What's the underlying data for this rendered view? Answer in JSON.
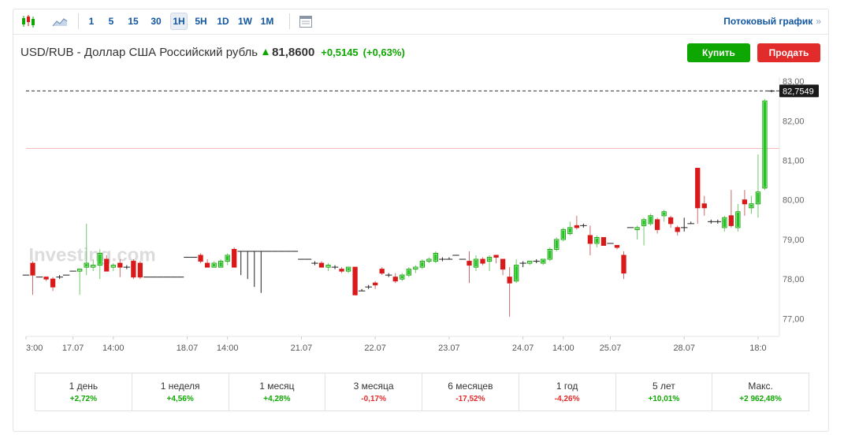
{
  "toolbar": {
    "intervals": [
      "1",
      "5",
      "15",
      "30",
      "1H",
      "5H",
      "1D",
      "1W",
      "1M"
    ],
    "active_interval": "1H",
    "stream_link": "Потоковый график",
    "stream_arrows": "»"
  },
  "header": {
    "pair": "USD/RUB - Доллар США Российский рубль",
    "price": "81,8600",
    "change_abs": "+0,5145",
    "change_pct": "(+0,63%)"
  },
  "actions": {
    "buy": "Купить",
    "sell": "Продать"
  },
  "colors": {
    "up": "#0ea600",
    "down": "#d91a1a",
    "accent": "#1256a0"
  },
  "periods": [
    {
      "label": "1 день",
      "value": "+2,72%",
      "dir": "pos"
    },
    {
      "label": "1 неделя",
      "value": "+4,56%",
      "dir": "pos"
    },
    {
      "label": "1 месяц",
      "value": "+4,28%",
      "dir": "pos"
    },
    {
      "label": "3 месяца",
      "value": "-0,17%",
      "dir": "neg"
    },
    {
      "label": "6 месяцев",
      "value": "-17,52%",
      "dir": "neg"
    },
    {
      "label": "1 год",
      "value": "-4,26%",
      "dir": "neg"
    },
    {
      "label": "5 лет",
      "value": "+10,01%",
      "dir": "pos"
    },
    {
      "label": "Макс.",
      "value": "+2 962,48%",
      "dir": "pos"
    }
  ],
  "chart_data": {
    "type": "candlestick",
    "watermark": "Investing.com",
    "ylim": [
      76.55,
      83.1
    ],
    "y_ticks": [
      "83,00",
      "82,00",
      "81,00",
      "80,00",
      "79,00",
      "78,00",
      "77,00"
    ],
    "y_tick_values": [
      83,
      82,
      81,
      80,
      79,
      78,
      77
    ],
    "x_ticks": [
      {
        "label": "3:00",
        "i": 0
      },
      {
        "label": "17.07",
        "i": 7
      },
      {
        "label": "14:00",
        "i": 13
      },
      {
        "label": "18.07",
        "i": 24
      },
      {
        "label": "14:00",
        "i": 30
      },
      {
        "label": "21.07",
        "i": 41
      },
      {
        "label": "22.07",
        "i": 52
      },
      {
        "label": "23.07",
        "i": 63
      },
      {
        "label": "24.07",
        "i": 74
      },
      {
        "label": "14:00",
        "i": 80
      },
      {
        "label": "25.07",
        "i": 87
      },
      {
        "label": "28.07",
        "i": 98
      },
      {
        "label": "18:0",
        "i": 109
      }
    ],
    "current_price_line": 82.7549,
    "current_price_label": "82,7549",
    "reference_line": 81.3,
    "candles": [
      {
        "o": 78.1,
        "h": 78.1,
        "l": 78.1,
        "c": 78.1
      },
      {
        "o": 78.4,
        "h": 78.45,
        "l": 77.6,
        "c": 78.1
      },
      {
        "o": 78.05,
        "h": 78.05,
        "l": 78.05,
        "c": 78.05
      },
      {
        "o": 78.05,
        "h": 78.05,
        "l": 77.95,
        "c": 78.0
      },
      {
        "o": 78.0,
        "h": 78.05,
        "l": 77.7,
        "c": 77.8
      },
      {
        "o": 78.05,
        "h": 78.1,
        "l": 78.0,
        "c": 78.05
      },
      {
        "o": 78.1,
        "h": 78.1,
        "l": 78.1,
        "c": 78.1
      },
      {
        "o": 78.2,
        "h": 78.2,
        "l": 78.2,
        "c": 78.2
      },
      {
        "o": 78.2,
        "h": 78.2,
        "l": 77.6,
        "c": 78.25
      },
      {
        "o": 78.3,
        "h": 79.4,
        "l": 78.1,
        "c": 78.4
      },
      {
        "o": 78.3,
        "h": 78.5,
        "l": 78.2,
        "c": 78.35
      },
      {
        "o": 78.35,
        "h": 78.75,
        "l": 78.0,
        "c": 78.65
      },
      {
        "o": 78.5,
        "h": 78.6,
        "l": 78.2,
        "c": 78.2
      },
      {
        "o": 78.3,
        "h": 78.4,
        "l": 78.2,
        "c": 78.35
      },
      {
        "o": 78.4,
        "h": 78.5,
        "l": 78.05,
        "c": 78.3
      },
      {
        "o": 78.3,
        "h": 78.35,
        "l": 78.25,
        "c": 78.3
      },
      {
        "o": 78.45,
        "h": 78.5,
        "l": 78.0,
        "c": 78.05
      },
      {
        "o": 78.4,
        "h": 78.45,
        "l": 78.0,
        "c": 78.05
      },
      {
        "o": 78.05,
        "h": 78.05,
        "l": 78.05,
        "c": 78.05
      },
      {
        "o": 78.05,
        "h": 78.05,
        "l": 78.05,
        "c": 78.05
      },
      {
        "o": 78.05,
        "h": 78.05,
        "l": 78.05,
        "c": 78.05
      },
      {
        "o": 78.05,
        "h": 78.05,
        "l": 78.05,
        "c": 78.05
      },
      {
        "o": 78.05,
        "h": 78.05,
        "l": 78.05,
        "c": 78.05
      },
      {
        "o": 78.05,
        "h": 78.05,
        "l": 78.05,
        "c": 78.05
      },
      {
        "o": 78.55,
        "h": 78.55,
        "l": 78.55,
        "c": 78.55
      },
      {
        "o": 78.55,
        "h": 78.55,
        "l": 78.55,
        "c": 78.55
      },
      {
        "o": 78.6,
        "h": 78.65,
        "l": 78.4,
        "c": 78.45
      },
      {
        "o": 78.4,
        "h": 78.5,
        "l": 78.3,
        "c": 78.3
      },
      {
        "o": 78.3,
        "h": 78.45,
        "l": 78.3,
        "c": 78.4
      },
      {
        "o": 78.3,
        "h": 78.5,
        "l": 78.3,
        "c": 78.45
      },
      {
        "o": 78.45,
        "h": 78.65,
        "l": 78.35,
        "c": 78.6
      },
      {
        "o": 78.75,
        "h": 78.8,
        "l": 78.3,
        "c": 78.3
      },
      {
        "o": 78.7,
        "h": 78.7,
        "l": 78.1,
        "c": 78.7
      },
      {
        "o": 78.7,
        "h": 78.7,
        "l": 78.0,
        "c": 78.7
      },
      {
        "o": 78.7,
        "h": 78.7,
        "l": 77.8,
        "c": 78.7
      },
      {
        "o": 78.7,
        "h": 78.7,
        "l": 77.65,
        "c": 78.7
      },
      {
        "o": 78.7,
        "h": 78.7,
        "l": 78.7,
        "c": 78.7
      },
      {
        "o": 78.7,
        "h": 78.7,
        "l": 78.7,
        "c": 78.7
      },
      {
        "o": 78.7,
        "h": 78.7,
        "l": 78.7,
        "c": 78.7
      },
      {
        "o": 78.7,
        "h": 78.7,
        "l": 78.7,
        "c": 78.7
      },
      {
        "o": 78.7,
        "h": 78.7,
        "l": 78.7,
        "c": 78.7
      },
      {
        "o": 78.5,
        "h": 78.5,
        "l": 78.5,
        "c": 78.5
      },
      {
        "o": 78.5,
        "h": 78.5,
        "l": 78.5,
        "c": 78.5
      },
      {
        "o": 78.4,
        "h": 78.45,
        "l": 78.35,
        "c": 78.4
      },
      {
        "o": 78.4,
        "h": 78.45,
        "l": 78.3,
        "c": 78.3
      },
      {
        "o": 78.3,
        "h": 78.4,
        "l": 78.2,
        "c": 78.35
      },
      {
        "o": 78.3,
        "h": 78.35,
        "l": 78.25,
        "c": 78.3
      },
      {
        "o": 78.25,
        "h": 78.3,
        "l": 78.15,
        "c": 78.2
      },
      {
        "o": 78.2,
        "h": 78.3,
        "l": 78.15,
        "c": 78.3
      },
      {
        "o": 78.3,
        "h": 78.3,
        "l": 77.6,
        "c": 77.6
      },
      {
        "o": 77.7,
        "h": 77.75,
        "l": 77.7,
        "c": 77.7
      },
      {
        "o": 77.8,
        "h": 77.85,
        "l": 77.75,
        "c": 77.8
      },
      {
        "o": 77.9,
        "h": 77.95,
        "l": 77.75,
        "c": 77.85
      },
      {
        "o": 78.25,
        "h": 78.3,
        "l": 78.1,
        "c": 78.15
      },
      {
        "o": 78.1,
        "h": 78.15,
        "l": 78.05,
        "c": 78.1
      },
      {
        "o": 78.05,
        "h": 78.15,
        "l": 77.9,
        "c": 77.95
      },
      {
        "o": 78.0,
        "h": 78.15,
        "l": 77.95,
        "c": 78.1
      },
      {
        "o": 78.1,
        "h": 78.3,
        "l": 78.05,
        "c": 78.25
      },
      {
        "o": 78.25,
        "h": 78.35,
        "l": 78.15,
        "c": 78.3
      },
      {
        "o": 78.3,
        "h": 78.5,
        "l": 78.25,
        "c": 78.45
      },
      {
        "o": 78.45,
        "h": 78.55,
        "l": 78.4,
        "c": 78.5
      },
      {
        "o": 78.45,
        "h": 78.7,
        "l": 78.4,
        "c": 78.65
      },
      {
        "o": 78.5,
        "h": 78.55,
        "l": 78.45,
        "c": 78.5
      },
      {
        "o": 78.5,
        "h": 78.55,
        "l": 78.5,
        "c": 78.5
      },
      {
        "o": 78.6,
        "h": 78.6,
        "l": 78.6,
        "c": 78.6
      },
      {
        "o": 78.5,
        "h": 78.5,
        "l": 78.5,
        "c": 78.5
      },
      {
        "o": 78.45,
        "h": 78.7,
        "l": 77.9,
        "c": 78.35
      },
      {
        "o": 78.3,
        "h": 78.6,
        "l": 78.2,
        "c": 78.5
      },
      {
        "o": 78.5,
        "h": 78.55,
        "l": 78.35,
        "c": 78.4
      },
      {
        "o": 78.45,
        "h": 78.6,
        "l": 78.2,
        "c": 78.55
      },
      {
        "o": 78.6,
        "h": 78.6,
        "l": 78.4,
        "c": 78.55
      },
      {
        "o": 78.5,
        "h": 78.5,
        "l": 78.1,
        "c": 78.25
      },
      {
        "o": 78.05,
        "h": 78.3,
        "l": 77.05,
        "c": 77.9
      },
      {
        "o": 77.95,
        "h": 78.5,
        "l": 77.9,
        "c": 78.35
      },
      {
        "o": 78.4,
        "h": 78.45,
        "l": 78.3,
        "c": 78.4
      },
      {
        "o": 78.4,
        "h": 78.45,
        "l": 78.35,
        "c": 78.45
      },
      {
        "o": 78.45,
        "h": 78.5,
        "l": 78.4,
        "c": 78.45
      },
      {
        "o": 78.4,
        "h": 78.5,
        "l": 78.35,
        "c": 78.5
      },
      {
        "o": 78.5,
        "h": 78.8,
        "l": 78.45,
        "c": 78.75
      },
      {
        "o": 78.75,
        "h": 79.05,
        "l": 78.7,
        "c": 79.0
      },
      {
        "o": 79.0,
        "h": 79.3,
        "l": 78.95,
        "c": 79.25
      },
      {
        "o": 79.15,
        "h": 79.45,
        "l": 79.1,
        "c": 79.3
      },
      {
        "o": 79.35,
        "h": 79.6,
        "l": 79.25,
        "c": 79.3
      },
      {
        "o": 79.35,
        "h": 79.4,
        "l": 79.3,
        "c": 79.35
      },
      {
        "o": 79.1,
        "h": 79.35,
        "l": 78.6,
        "c": 78.9
      },
      {
        "o": 78.9,
        "h": 79.1,
        "l": 78.8,
        "c": 79.05
      },
      {
        "o": 79.05,
        "h": 79.05,
        "l": 78.85,
        "c": 78.85
      },
      {
        "o": 78.9,
        "h": 78.9,
        "l": 78.9,
        "c": 78.9
      },
      {
        "o": 78.85,
        "h": 78.85,
        "l": 78.75,
        "c": 78.8
      },
      {
        "o": 78.6,
        "h": 78.7,
        "l": 78.0,
        "c": 78.15
      },
      {
        "o": 79.3,
        "h": 79.3,
        "l": 79.3,
        "c": 79.3
      },
      {
        "o": 79.25,
        "h": 79.35,
        "l": 79.0,
        "c": 79.3
      },
      {
        "o": 79.35,
        "h": 79.55,
        "l": 78.85,
        "c": 79.5
      },
      {
        "o": 79.4,
        "h": 79.65,
        "l": 79.35,
        "c": 79.6
      },
      {
        "o": 79.5,
        "h": 79.55,
        "l": 79.15,
        "c": 79.25
      },
      {
        "o": 79.6,
        "h": 79.75,
        "l": 79.45,
        "c": 79.7
      },
      {
        "o": 79.55,
        "h": 79.6,
        "l": 79.3,
        "c": 79.4
      },
      {
        "o": 79.3,
        "h": 79.35,
        "l": 79.1,
        "c": 79.2
      },
      {
        "o": 79.3,
        "h": 79.55,
        "l": 79.2,
        "c": 79.3
      },
      {
        "o": 79.4,
        "h": 79.45,
        "l": 79.4,
        "c": 79.4
      },
      {
        "o": 80.8,
        "h": 80.8,
        "l": 79.4,
        "c": 79.8
      },
      {
        "o": 79.9,
        "h": 80.1,
        "l": 79.6,
        "c": 79.8
      },
      {
        "o": 79.45,
        "h": 79.5,
        "l": 79.4,
        "c": 79.45
      },
      {
        "o": 79.45,
        "h": 79.5,
        "l": 79.4,
        "c": 79.45
      },
      {
        "o": 79.3,
        "h": 79.6,
        "l": 79.2,
        "c": 79.55
      },
      {
        "o": 79.6,
        "h": 80.25,
        "l": 79.3,
        "c": 79.35
      },
      {
        "o": 79.3,
        "h": 79.9,
        "l": 79.2,
        "c": 79.7
      },
      {
        "o": 80.0,
        "h": 80.25,
        "l": 79.6,
        "c": 79.9
      },
      {
        "o": 79.8,
        "h": 80.1,
        "l": 79.65,
        "c": 79.9
      },
      {
        "o": 79.9,
        "h": 81.15,
        "l": 79.55,
        "c": 80.2
      },
      {
        "o": 80.3,
        "h": 82.55,
        "l": 80.25,
        "c": 82.5
      },
      {
        "o": 82.75,
        "h": 82.78,
        "l": 82.72,
        "c": 82.75
      }
    ]
  }
}
